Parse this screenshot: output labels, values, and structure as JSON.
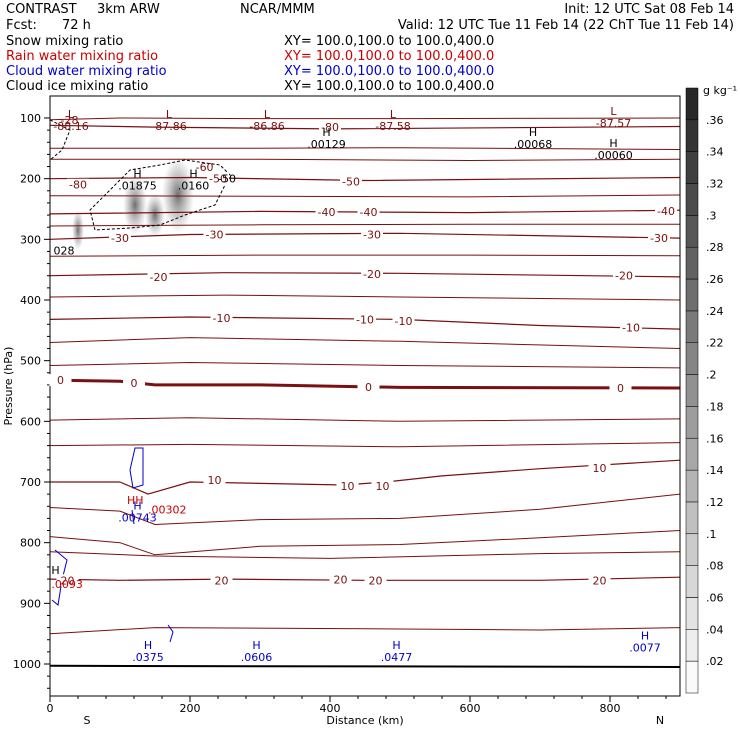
{
  "header": {
    "model": "CONTRAST",
    "grid": "3km ARW",
    "org": "NCAR/MMM",
    "init": "Init: 12 UTC Sat 08 Feb 14",
    "fcst_label": "Fcst:",
    "fcst_value": "72 h",
    "valid": "Valid: 12 UTC Tue 11 Feb 14 (22 ChT Tue 11 Feb 14)"
  },
  "fields": [
    {
      "name": "Snow mixing ratio",
      "xy": "XY= 100.0,100.0 to 100.0,400.0",
      "color": "#000000"
    },
    {
      "name": "Rain water mixing ratio",
      "xy": "XY= 100.0,100.0 to 100.0,400.0",
      "color": "#cc0000"
    },
    {
      "name": "Cloud water mixing ratio",
      "xy": "XY= 100.0,100.0 to 100.0,400.0",
      "color": "#0000cc"
    },
    {
      "name": "Cloud ice mixing ratio",
      "xy": "XY= 100.0,100.0 to 100.0,400.0",
      "color": "#000000"
    }
  ],
  "chart_data": {
    "type": "cross-section contour",
    "xlabel": "Distance (km)",
    "ylabel": "Pressure (hPa)",
    "xlim": [
      0,
      900
    ],
    "ylim": [
      1050,
      70
    ],
    "x_ticks": [
      "0",
      "200",
      "400",
      "600",
      "800"
    ],
    "y_ticks": [
      "100",
      "200",
      "300",
      "400",
      "500",
      "600",
      "700",
      "800",
      "900",
      "1000"
    ],
    "ends": {
      "left": "S",
      "right": "N"
    },
    "temperature_color": "#7a1010",
    "isotherms": [
      {
        "value": -80,
        "labels": [
          {
            "x": 40,
            "p": 210,
            "text": "-80"
          },
          {
            "x": 400,
            "p": 115,
            "text": "-80"
          }
        ]
      },
      {
        "value": -50,
        "labels": [
          {
            "x": 240,
            "p": 200,
            "text": "-50"
          },
          {
            "x": 430,
            "p": 205,
            "text": "-50"
          }
        ]
      },
      {
        "value": -40,
        "labels": [
          {
            "x": 395,
            "p": 255,
            "text": "-40"
          },
          {
            "x": 455,
            "p": 255,
            "text": "-40"
          },
          {
            "x": 880,
            "p": 253,
            "text": "-40"
          }
        ]
      },
      {
        "value": -30,
        "labels": [
          {
            "x": 100,
            "p": 298,
            "text": "-30"
          },
          {
            "x": 235,
            "p": 292,
            "text": "-30"
          },
          {
            "x": 460,
            "p": 292,
            "text": "-30"
          },
          {
            "x": 870,
            "p": 298,
            "text": "-30"
          }
        ]
      },
      {
        "value": -20,
        "labels": [
          {
            "x": 155,
            "p": 362,
            "text": "-20"
          },
          {
            "x": 460,
            "p": 357,
            "text": "-20"
          },
          {
            "x": 820,
            "p": 360,
            "text": "-20"
          }
        ]
      },
      {
        "value": -10,
        "labels": [
          {
            "x": 245,
            "p": 430,
            "text": "-10"
          },
          {
            "x": 450,
            "p": 432,
            "text": "-10"
          },
          {
            "x": 505,
            "p": 435,
            "text": "-10"
          },
          {
            "x": 830,
            "p": 445,
            "text": "-10"
          }
        ]
      },
      {
        "value": 0,
        "labels": [
          {
            "x": 15,
            "p": 532,
            "text": "0"
          },
          {
            "x": 120,
            "p": 537,
            "text": "0"
          },
          {
            "x": 455,
            "p": 543,
            "text": "0"
          },
          {
            "x": 815,
            "p": 545,
            "text": "0"
          }
        ]
      },
      {
        "value": 10,
        "labels": [
          {
            "x": 235,
            "p": 697,
            "text": "10"
          },
          {
            "x": 425,
            "p": 707,
            "text": "10"
          },
          {
            "x": 475,
            "p": 707,
            "text": "10"
          },
          {
            "x": 785,
            "p": 677,
            "text": "10"
          }
        ]
      },
      {
        "value": 20,
        "labels": [
          {
            "x": 25,
            "p": 862,
            "text": "20"
          },
          {
            "x": 245,
            "p": 862,
            "text": "20"
          },
          {
            "x": 415,
            "p": 861,
            "text": "20"
          },
          {
            "x": 465,
            "p": 862,
            "text": "20"
          },
          {
            "x": 785,
            "p": 862,
            "text": "20"
          }
        ]
      }
    ],
    "extrema": [
      {
        "kind": "L",
        "x": 30,
        "p": 100,
        "value": "-88.16",
        "color": "#7a1010"
      },
      {
        "kind": "L",
        "x": 170,
        "p": 100,
        "value": "-87.86",
        "color": "#7a1010"
      },
      {
        "kind": "L",
        "x": 310,
        "p": 100,
        "value": "-86.86",
        "color": "#7a1010"
      },
      {
        "kind": "L",
        "x": 490,
        "p": 100,
        "value": "-87.58",
        "color": "#7a1010"
      },
      {
        "kind": "L",
        "x": 805,
        "p": 95,
        "value": "-87.57",
        "color": "#7a1010"
      },
      {
        "kind": "H",
        "x": 395,
        "p": 130,
        "value": ".00129",
        "color": "#000000"
      },
      {
        "kind": "H",
        "x": 690,
        "p": 130,
        "value": ".00068",
        "color": "#000000"
      },
      {
        "kind": "H",
        "x": 805,
        "p": 148,
        "value": ".00060",
        "color": "#000000"
      },
      {
        "kind": "H",
        "x": 125,
        "p": 198,
        "value": ".01875",
        "color": "#000000"
      },
      {
        "kind": "H",
        "x": 205,
        "p": 198,
        "value": ".0160",
        "color": "#000000"
      },
      {
        "kind": "H",
        "x": 125,
        "p": 745,
        "value": ".00743",
        "color": "#0000cc"
      },
      {
        "kind": "H",
        "x": 140,
        "p": 975,
        "value": ".0375",
        "color": "#0000cc"
      },
      {
        "kind": "H",
        "x": 295,
        "p": 975,
        "value": ".0606",
        "color": "#0000cc"
      },
      {
        "kind": "H",
        "x": 495,
        "p": 975,
        "value": ".0477",
        "color": "#0000cc"
      },
      {
        "kind": "H",
        "x": 850,
        "p": 960,
        "value": ".0077",
        "color": "#0000cc"
      }
    ],
    "misc_labels": [
      {
        "text": "-28",
        "x": 15,
        "p": 103,
        "color": "#7a1010"
      },
      {
        "text": "-60",
        "x": 208,
        "p": 181,
        "color": "#7a1010"
      },
      {
        "text": "-50",
        "x": 240,
        "p": 200,
        "color": "#000000"
      },
      {
        "text": "028",
        "x": 5,
        "p": 318,
        "color": "#000000"
      },
      {
        "text": "HH",
        "x": 110,
        "p": 730,
        "color": "#cc0000"
      },
      {
        "text": ".00302",
        "x": 140,
        "p": 745,
        "color": "#cc0000"
      },
      {
        "text": "H",
        "x": 2,
        "p": 845,
        "color": "#000000"
      },
      {
        "text": ".0093",
        "x": 2,
        "p": 868,
        "color": "#cc0000"
      }
    ],
    "colorbar": {
      "label": "g kg⁻¹",
      "ticks": [
        ".02",
        ".04",
        ".06",
        ".08",
        ".1",
        ".12",
        ".14",
        ".16",
        ".18",
        ".2",
        ".22",
        ".24",
        ".26",
        ".28",
        ".3",
        ".32",
        ".34",
        ".36"
      ]
    }
  }
}
